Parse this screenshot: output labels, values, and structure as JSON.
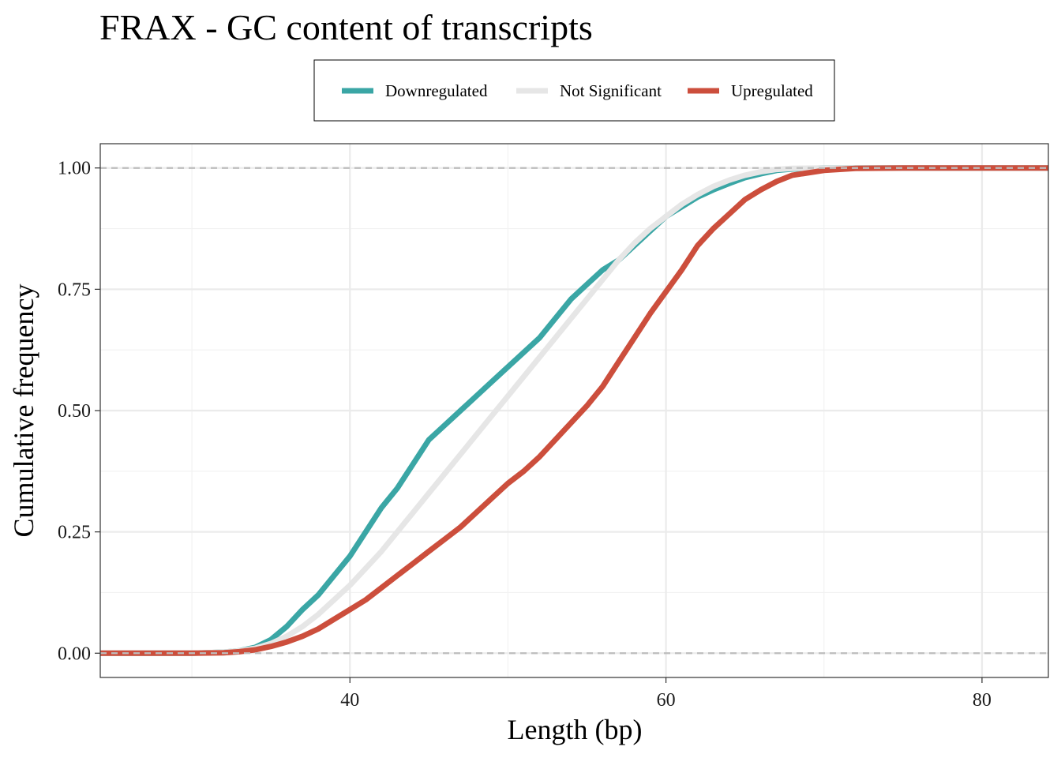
{
  "chart_data": {
    "type": "line",
    "title": "FRAX - GC content of transcripts",
    "xlabel": "Length (bp)",
    "ylabel": "Cumulative frequency",
    "xlim": [
      24.2,
      84.2
    ],
    "ylim": [
      -0.05,
      1.05
    ],
    "x_ticks": [
      40,
      60,
      80
    ],
    "x_tick_labels": [
      "40",
      "60",
      "80"
    ],
    "y_ticks": [
      0,
      0.25,
      0.5,
      0.75,
      1
    ],
    "y_tick_labels": [
      "0.00",
      "0.25",
      "0.50",
      "0.75",
      "1.00"
    ],
    "x_minor_ticks": [
      30,
      50,
      70
    ],
    "y_minor_ticks": [
      0.125,
      0.375,
      0.625,
      0.875
    ],
    "reference_lines_y": [
      0,
      1
    ],
    "grid": true,
    "legend_position": "top",
    "series": [
      {
        "name": "Downregulated",
        "color": "#3aa6a5",
        "points": [
          [
            24.2,
            0
          ],
          [
            30,
            0
          ],
          [
            32,
            0.002
          ],
          [
            33,
            0.005
          ],
          [
            34,
            0.012
          ],
          [
            35,
            0.028
          ],
          [
            36,
            0.055
          ],
          [
            37,
            0.09
          ],
          [
            38,
            0.12
          ],
          [
            39,
            0.16
          ],
          [
            40,
            0.2
          ],
          [
            41,
            0.25
          ],
          [
            42,
            0.3
          ],
          [
            43,
            0.34
          ],
          [
            44,
            0.39
          ],
          [
            45,
            0.44
          ],
          [
            46,
            0.47
          ],
          [
            47,
            0.5
          ],
          [
            48,
            0.53
          ],
          [
            49,
            0.56
          ],
          [
            50,
            0.59
          ],
          [
            51,
            0.62
          ],
          [
            52,
            0.65
          ],
          [
            53,
            0.69
          ],
          [
            54,
            0.73
          ],
          [
            55,
            0.76
          ],
          [
            56,
            0.79
          ],
          [
            57,
            0.81
          ],
          [
            58,
            0.84
          ],
          [
            59,
            0.87
          ],
          [
            60,
            0.9
          ],
          [
            61,
            0.92
          ],
          [
            62,
            0.94
          ],
          [
            63,
            0.955
          ],
          [
            64,
            0.968
          ],
          [
            65,
            0.98
          ],
          [
            66,
            0.988
          ],
          [
            67,
            0.995
          ],
          [
            68,
            0.998
          ],
          [
            70,
            1
          ],
          [
            84.2,
            1
          ]
        ]
      },
      {
        "name": "Not Significant",
        "color": "#e6e6e6",
        "points": [
          [
            24.2,
            0
          ],
          [
            30,
            0
          ],
          [
            32,
            0.002
          ],
          [
            33,
            0.005
          ],
          [
            34,
            0.01
          ],
          [
            35,
            0.02
          ],
          [
            36,
            0.035
          ],
          [
            37,
            0.055
          ],
          [
            38,
            0.08
          ],
          [
            39,
            0.11
          ],
          [
            40,
            0.14
          ],
          [
            41,
            0.175
          ],
          [
            42,
            0.21
          ],
          [
            43,
            0.25
          ],
          [
            44,
            0.29
          ],
          [
            45,
            0.33
          ],
          [
            46,
            0.37
          ],
          [
            47,
            0.41
          ],
          [
            48,
            0.45
          ],
          [
            49,
            0.49
          ],
          [
            50,
            0.53
          ],
          [
            51,
            0.57
          ],
          [
            52,
            0.61
          ],
          [
            53,
            0.65
          ],
          [
            54,
            0.69
          ],
          [
            55,
            0.73
          ],
          [
            56,
            0.77
          ],
          [
            57,
            0.81
          ],
          [
            58,
            0.845
          ],
          [
            59,
            0.875
          ],
          [
            60,
            0.9
          ],
          [
            61,
            0.925
          ],
          [
            62,
            0.945
          ],
          [
            63,
            0.962
          ],
          [
            64,
            0.975
          ],
          [
            65,
            0.985
          ],
          [
            66,
            0.992
          ],
          [
            67,
            0.997
          ],
          [
            68,
            0.999
          ],
          [
            70,
            1
          ],
          [
            84.2,
            1
          ]
        ]
      },
      {
        "name": "Upregulated",
        "color": "#cc4e3c",
        "points": [
          [
            24.2,
            0
          ],
          [
            30,
            0
          ],
          [
            32,
            0.001
          ],
          [
            33,
            0.003
          ],
          [
            34,
            0.007
          ],
          [
            35,
            0.014
          ],
          [
            36,
            0.023
          ],
          [
            37,
            0.035
          ],
          [
            38,
            0.05
          ],
          [
            39,
            0.07
          ],
          [
            40,
            0.09
          ],
          [
            41,
            0.11
          ],
          [
            42,
            0.135
          ],
          [
            43,
            0.16
          ],
          [
            44,
            0.185
          ],
          [
            45,
            0.21
          ],
          [
            46,
            0.235
          ],
          [
            47,
            0.26
          ],
          [
            48,
            0.29
          ],
          [
            49,
            0.32
          ],
          [
            50,
            0.35
          ],
          [
            51,
            0.375
          ],
          [
            52,
            0.405
          ],
          [
            53,
            0.44
          ],
          [
            54,
            0.475
          ],
          [
            55,
            0.51
          ],
          [
            56,
            0.55
          ],
          [
            57,
            0.6
          ],
          [
            58,
            0.65
          ],
          [
            59,
            0.7
          ],
          [
            60,
            0.745
          ],
          [
            61,
            0.79
          ],
          [
            62,
            0.84
          ],
          [
            63,
            0.875
          ],
          [
            64,
            0.905
          ],
          [
            65,
            0.935
          ],
          [
            66,
            0.955
          ],
          [
            67,
            0.972
          ],
          [
            68,
            0.985
          ],
          [
            70,
            0.995
          ],
          [
            72,
            0.999
          ],
          [
            75,
            1
          ],
          [
            84.2,
            1
          ]
        ]
      }
    ]
  }
}
